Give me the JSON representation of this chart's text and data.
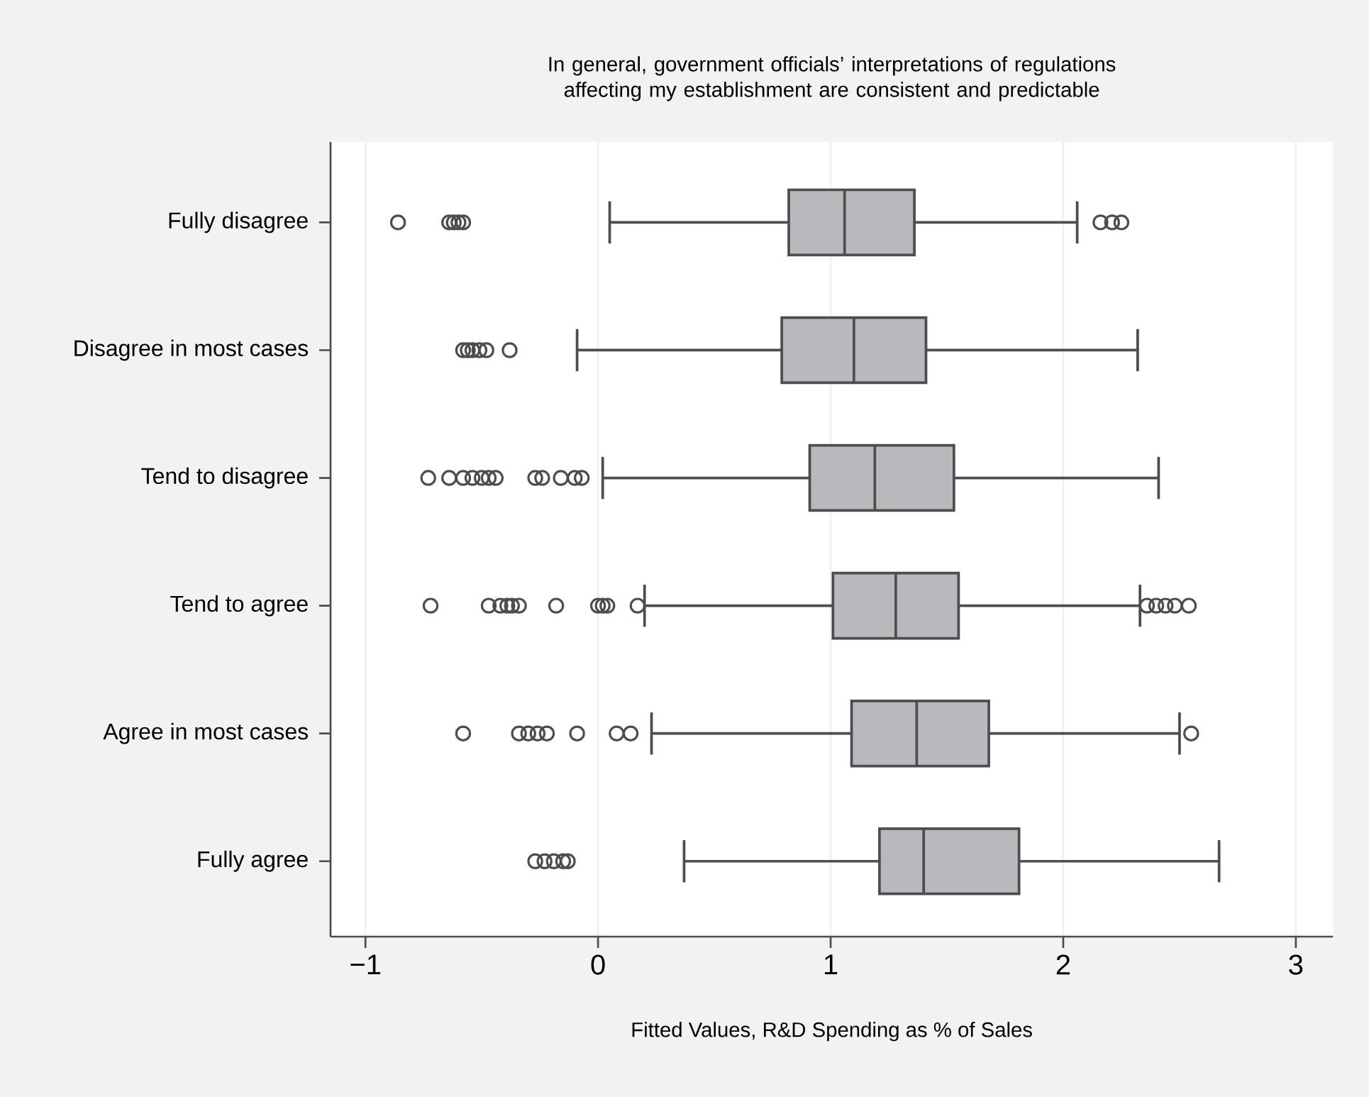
{
  "chart_data": {
    "type": "box",
    "orientation": "horizontal",
    "title": "In general, government officials’ interpretations of regulations affecting my establishment are consistent and predictable",
    "xlabel": "Fitted Values, R&D Spending as % of Sales",
    "categories": [
      "Fully disagree",
      "Disagree in most cases",
      "Tend to disagree",
      "Tend to agree",
      "Agree in most cases",
      "Fully agree"
    ],
    "xlim": [
      -1.15,
      3.16
    ],
    "xticks": [
      {
        "value": -1,
        "label": "−1"
      },
      0,
      1,
      2,
      3
    ],
    "grid": "x",
    "marker": "circle",
    "series": [
      {
        "color": "#b8b9bc",
        "boxes": [
          {
            "low": 0.05,
            "q1": 0.82,
            "median": 1.06,
            "q3": 1.36,
            "high": 2.06,
            "outliers": [
              -0.86,
              -0.64,
              -0.62,
              -0.6,
              -0.58,
              2.16,
              2.21,
              2.25
            ]
          },
          {
            "low": -0.09,
            "q1": 0.79,
            "median": 1.1,
            "q3": 1.41,
            "high": 2.32,
            "outliers": [
              -0.58,
              -0.56,
              -0.54,
              -0.51,
              -0.48,
              -0.38
            ]
          },
          {
            "low": 0.02,
            "q1": 0.91,
            "median": 1.19,
            "q3": 1.53,
            "high": 2.41,
            "outliers": [
              -0.73,
              -0.64,
              -0.58,
              -0.54,
              -0.5,
              -0.47,
              -0.44,
              -0.27,
              -0.24,
              -0.16,
              -0.1,
              -0.07
            ]
          },
          {
            "low": 0.2,
            "q1": 1.01,
            "median": 1.28,
            "q3": 1.55,
            "high": 2.33,
            "outliers": [
              -0.72,
              -0.47,
              -0.42,
              -0.39,
              -0.37,
              -0.34,
              -0.18,
              0.0,
              0.02,
              0.04,
              0.17,
              2.36,
              2.4,
              2.44,
              2.48,
              2.54
            ]
          },
          {
            "low": 0.23,
            "q1": 1.09,
            "median": 1.37,
            "q3": 1.68,
            "high": 2.5,
            "outliers": [
              -0.58,
              -0.34,
              -0.3,
              -0.26,
              -0.22,
              -0.09,
              0.08,
              0.14,
              2.55
            ]
          },
          {
            "low": 0.37,
            "q1": 1.21,
            "median": 1.4,
            "q3": 1.81,
            "high": 2.67,
            "outliers": [
              -0.27,
              -0.23,
              -0.19,
              -0.15,
              -0.13
            ]
          }
        ]
      }
    ]
  }
}
